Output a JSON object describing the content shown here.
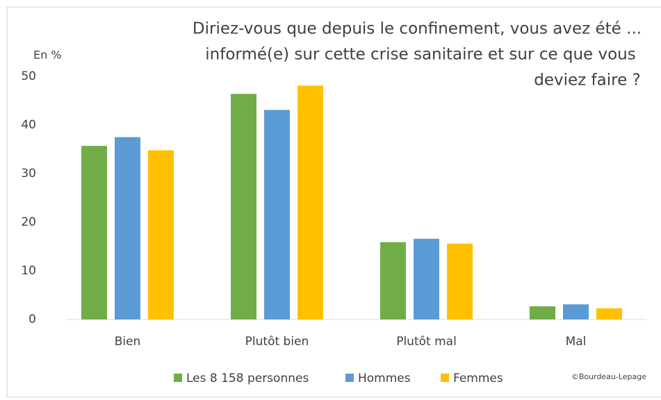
{
  "chart_data": {
    "type": "bar",
    "title": [
      "Diriez-vous que depuis le confinement, vous avez été ...",
      "informé(e) sur cette crise sanitaire et sur ce que vous",
      "deviez faire ?"
    ],
    "y_label": "En %",
    "source": "©Bourdeau-Lepage",
    "categories": [
      "Bien",
      "Plutôt bien",
      "Plutôt mal",
      "Mal"
    ],
    "series": [
      {
        "name": "Les 8 158 personnes",
        "color": "#70ad47",
        "values": [
          35.7,
          46.4,
          15.9,
          2.7
        ]
      },
      {
        "name": "Hommes",
        "color": "#5b9bd5",
        "values": [
          37.5,
          43.1,
          16.6,
          3.1
        ]
      },
      {
        "name": "Femmes",
        "color": "#ffc000",
        "values": [
          34.8,
          48.1,
          15.6,
          2.3
        ]
      }
    ],
    "ylim": [
      0,
      50
    ],
    "yticks": [
      0,
      10,
      20,
      30,
      40,
      50
    ],
    "grid": false,
    "legend": "bottom"
  }
}
